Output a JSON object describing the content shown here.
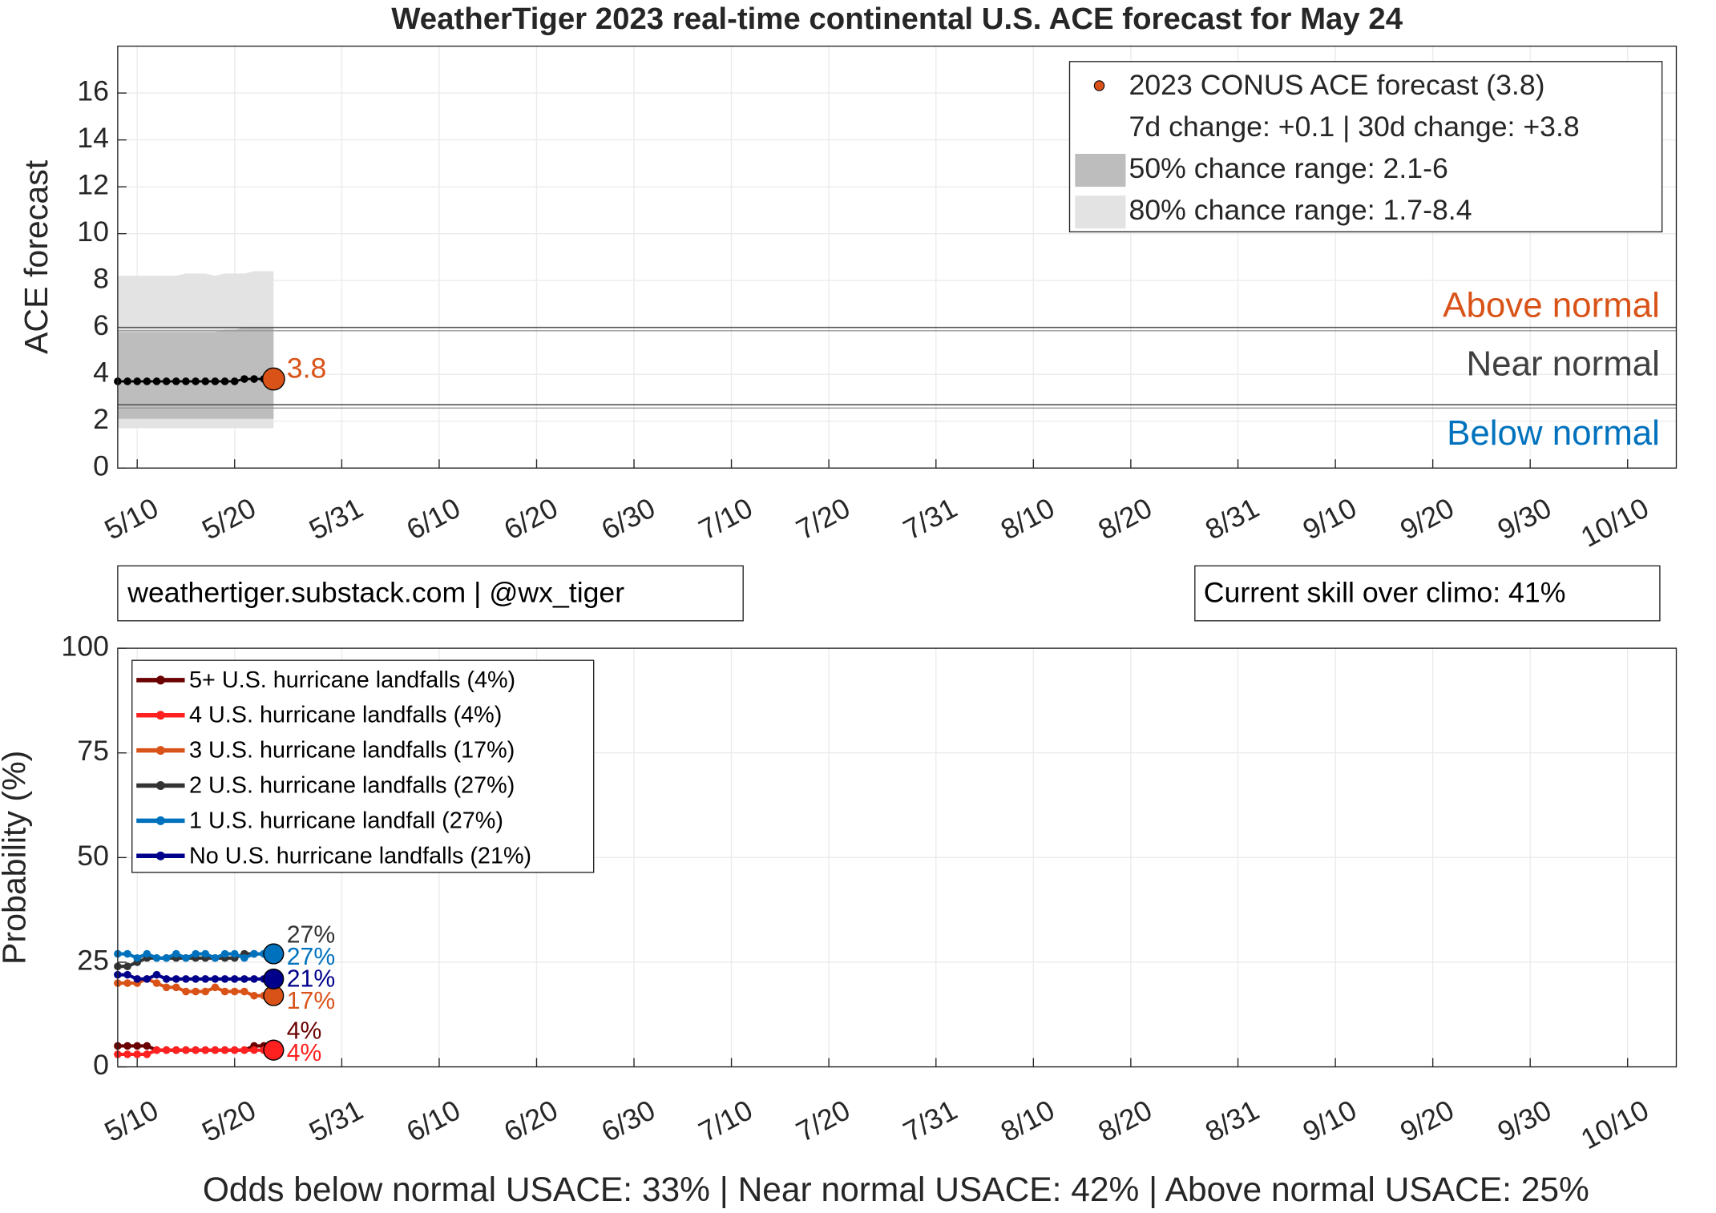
{
  "chart_data": [
    {
      "type": "line",
      "title": "WeatherTiger 2023 real-time continental U.S. ACE forecast for May 24",
      "y_label": "ACE forecast",
      "x": [
        "5/8",
        "5/9",
        "5/10",
        "5/11",
        "5/12",
        "5/13",
        "5/14",
        "5/15",
        "5/16",
        "5/17",
        "5/18",
        "5/19",
        "5/20",
        "5/21",
        "5/22",
        "5/23",
        "5/24"
      ],
      "xlim": [
        "5/8",
        "10/15"
      ],
      "xticks": [
        "5/10",
        "5/20",
        "5/31",
        "6/10",
        "6/20",
        "6/30",
        "7/10",
        "7/20",
        "7/31",
        "8/10",
        "8/20",
        "8/31",
        "9/10",
        "9/20",
        "9/30",
        "10/10"
      ],
      "ylim": [
        0,
        18
      ],
      "yticks": [
        0,
        2,
        4,
        6,
        8,
        10,
        12,
        14,
        16
      ],
      "grid": true,
      "series": [
        {
          "name": "2023 CONUS ACE forecast (3.8)",
          "color": "#D95319",
          "line_color": "#000000",
          "values": [
            3.7,
            3.7,
            3.7,
            3.7,
            3.7,
            3.7,
            3.7,
            3.7,
            3.7,
            3.7,
            3.7,
            3.7,
            3.7,
            3.8,
            3.8,
            3.8,
            3.8
          ]
        }
      ],
      "legend_note": "7d change: +0.1 | 30d change: +3.8",
      "bands": [
        {
          "name": "80% chance range: 1.7-8.4",
          "color": "#e3e3e3",
          "lower": [
            1.7,
            1.7,
            1.7,
            1.7,
            1.7,
            1.7,
            1.7,
            1.7,
            1.7,
            1.7,
            1.7,
            1.7,
            1.7,
            1.7,
            1.7,
            1.7,
            1.7
          ],
          "upper": [
            8.2,
            8.2,
            8.2,
            8.2,
            8.2,
            8.2,
            8.2,
            8.3,
            8.3,
            8.3,
            8.2,
            8.3,
            8.3,
            8.3,
            8.4,
            8.4,
            8.4
          ]
        },
        {
          "name": "50% chance range: 2.1-6",
          "color": "#bdbdbd",
          "lower": [
            2.1,
            2.1,
            2.1,
            2.1,
            2.1,
            2.1,
            2.1,
            2.1,
            2.1,
            2.1,
            2.1,
            2.1,
            2.1,
            2.1,
            2.1,
            2.1,
            2.1
          ],
          "upper": [
            5.8,
            5.8,
            5.8,
            5.8,
            5.8,
            5.8,
            5.8,
            5.8,
            5.8,
            5.8,
            5.8,
            5.9,
            5.9,
            6,
            6,
            6,
            6
          ]
        }
      ],
      "threshold_lines": [
        2.7,
        6
      ],
      "zone_labels": [
        {
          "text": "Below normal",
          "color": "#0072BD"
        },
        {
          "text": "Near normal",
          "color": "#404040"
        },
        {
          "text": "Above normal",
          "color": "#D95319"
        }
      ],
      "annotations": [
        "weathertiger.substack.com | @wx_tiger",
        "Current skill over climo: 41%"
      ]
    },
    {
      "type": "line",
      "y_label": "Probability (%)",
      "x": [
        "5/8",
        "5/9",
        "5/10",
        "5/11",
        "5/12",
        "5/13",
        "5/14",
        "5/15",
        "5/16",
        "5/17",
        "5/18",
        "5/19",
        "5/20",
        "5/21",
        "5/22",
        "5/23",
        "5/24"
      ],
      "xlim": [
        "5/8",
        "10/15"
      ],
      "xticks": [
        "5/10",
        "5/20",
        "5/31",
        "6/10",
        "6/20",
        "6/30",
        "7/10",
        "7/20",
        "7/31",
        "8/10",
        "8/20",
        "8/31",
        "9/10",
        "9/20",
        "9/30",
        "10/10"
      ],
      "ylim": [
        0,
        100
      ],
      "yticks": [
        0,
        25,
        50,
        75,
        100
      ],
      "grid": true,
      "series": [
        {
          "name": "5+ U.S. hurricane landfalls (4%)",
          "color": "#6B0000",
          "values": [
            5,
            5,
            5,
            5,
            4,
            4,
            4,
            4,
            4,
            4,
            4,
            4,
            4,
            4,
            5,
            5,
            4
          ],
          "value_labels": [
            null,
            null,
            null,
            null,
            null,
            null,
            null,
            null,
            null,
            null,
            null,
            null,
            null,
            null,
            null,
            null,
            "4%"
          ]
        },
        {
          "name": "4 U.S. hurricane landfalls (4%)",
          "color": "#FF2020",
          "values": [
            3,
            3,
            3,
            3,
            4,
            4,
            4,
            4,
            4,
            4,
            4,
            4,
            4,
            4,
            4,
            4,
            4
          ],
          "value_labels": [
            null,
            null,
            null,
            null,
            null,
            null,
            null,
            null,
            null,
            null,
            null,
            null,
            null,
            null,
            null,
            null,
            "4%"
          ]
        },
        {
          "name": "3 U.S. hurricane landfalls (17%)",
          "color": "#D95319",
          "values": [
            20,
            20,
            20,
            21,
            20,
            19,
            19,
            18,
            18,
            18,
            19,
            18,
            18,
            18,
            17,
            17,
            17
          ],
          "value_labels": [
            null,
            null,
            null,
            null,
            null,
            null,
            null,
            null,
            null,
            null,
            null,
            null,
            null,
            null,
            null,
            null,
            "17%"
          ]
        },
        {
          "name": "2 U.S. hurricane landfalls (27%)",
          "color": "#333333",
          "values": [
            24,
            24,
            25,
            26,
            26,
            26,
            26,
            26,
            26,
            26,
            26,
            26,
            26,
            27,
            27,
            27,
            27
          ],
          "value_labels": [
            null,
            null,
            null,
            null,
            null,
            null,
            null,
            null,
            null,
            null,
            null,
            null,
            null,
            null,
            null,
            null,
            "27%"
          ]
        },
        {
          "name": "1 U.S. hurricane landfall (27%)",
          "color": "#0072BD",
          "values": [
            27,
            27,
            26,
            27,
            26,
            26,
            27,
            26,
            27,
            27,
            26,
            27,
            27,
            26,
            27,
            27,
            27
          ],
          "value_labels": [
            null,
            null,
            null,
            null,
            null,
            null,
            null,
            null,
            null,
            null,
            null,
            null,
            null,
            null,
            null,
            null,
            "27%"
          ]
        },
        {
          "name": "No U.S. hurricane landfalls (21%)",
          "color": "#00008B",
          "values": [
            22,
            22,
            21,
            21,
            22,
            21,
            21,
            21,
            21,
            21,
            21,
            21,
            21,
            21,
            21,
            21,
            21
          ],
          "value_labels": [
            null,
            null,
            null,
            null,
            null,
            null,
            null,
            null,
            null,
            null,
            null,
            null,
            null,
            null,
            null,
            null,
            "21%"
          ]
        }
      ],
      "footer": "Odds below normal USACE: 33% | Near normal USACE: 42% | Above normal USACE: 25%"
    }
  ]
}
